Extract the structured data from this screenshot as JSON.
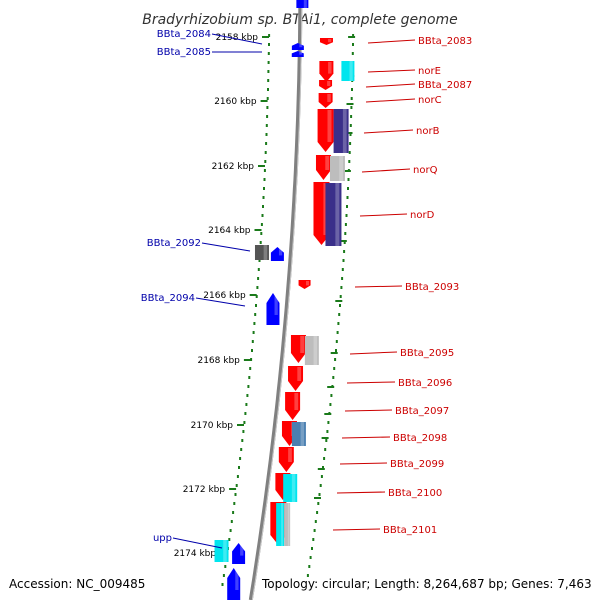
{
  "title": "Bradyrhizobium sp. BTAi1, complete genome",
  "accession_text": "Accession: NC_009485",
  "topology_text": "Topology: circular; Length: 8,264,687 bp; Genes: 7,463",
  "colors": {
    "red": "#ff0000",
    "blue": "#0000ff",
    "cyan": "#00e5ee",
    "navy": "#3a2f8a",
    "grey": "#bdbdbd",
    "steel": "#4a7fb0",
    "darkgrey": "#555555",
    "backbone": "#808080",
    "ticks": "#1a7a1a",
    "label_red": "#cc0000",
    "label_blue": "#0000aa"
  },
  "kbp_ticks": [
    "2158 kbp",
    "2160 kbp",
    "2162 kbp",
    "2164 kbp",
    "2166 kbp",
    "2168 kbp",
    "2170 kbp",
    "2172 kbp",
    "2174 kbp"
  ],
  "genes_forward": [
    {
      "label": "BBta_2083"
    },
    {
      "label": "norE"
    },
    {
      "label": "BBta_2087"
    },
    {
      "label": "norC"
    },
    {
      "label": "norB"
    },
    {
      "label": "norQ"
    },
    {
      "label": "norD"
    },
    {
      "label": "BBta_2093"
    },
    {
      "label": "BBta_2095"
    },
    {
      "label": "BBta_2096"
    },
    {
      "label": "BBta_2097"
    },
    {
      "label": "BBta_2098"
    },
    {
      "label": "BBta_2099"
    },
    {
      "label": "BBta_2100"
    },
    {
      "label": "BBta_2101"
    }
  ],
  "genes_reverse": [
    {
      "label": "BBta_2084"
    },
    {
      "label": "BBta_2085"
    },
    {
      "label": "BBta_2092"
    },
    {
      "label": "BBta_2094"
    },
    {
      "label": "upp"
    }
  ]
}
